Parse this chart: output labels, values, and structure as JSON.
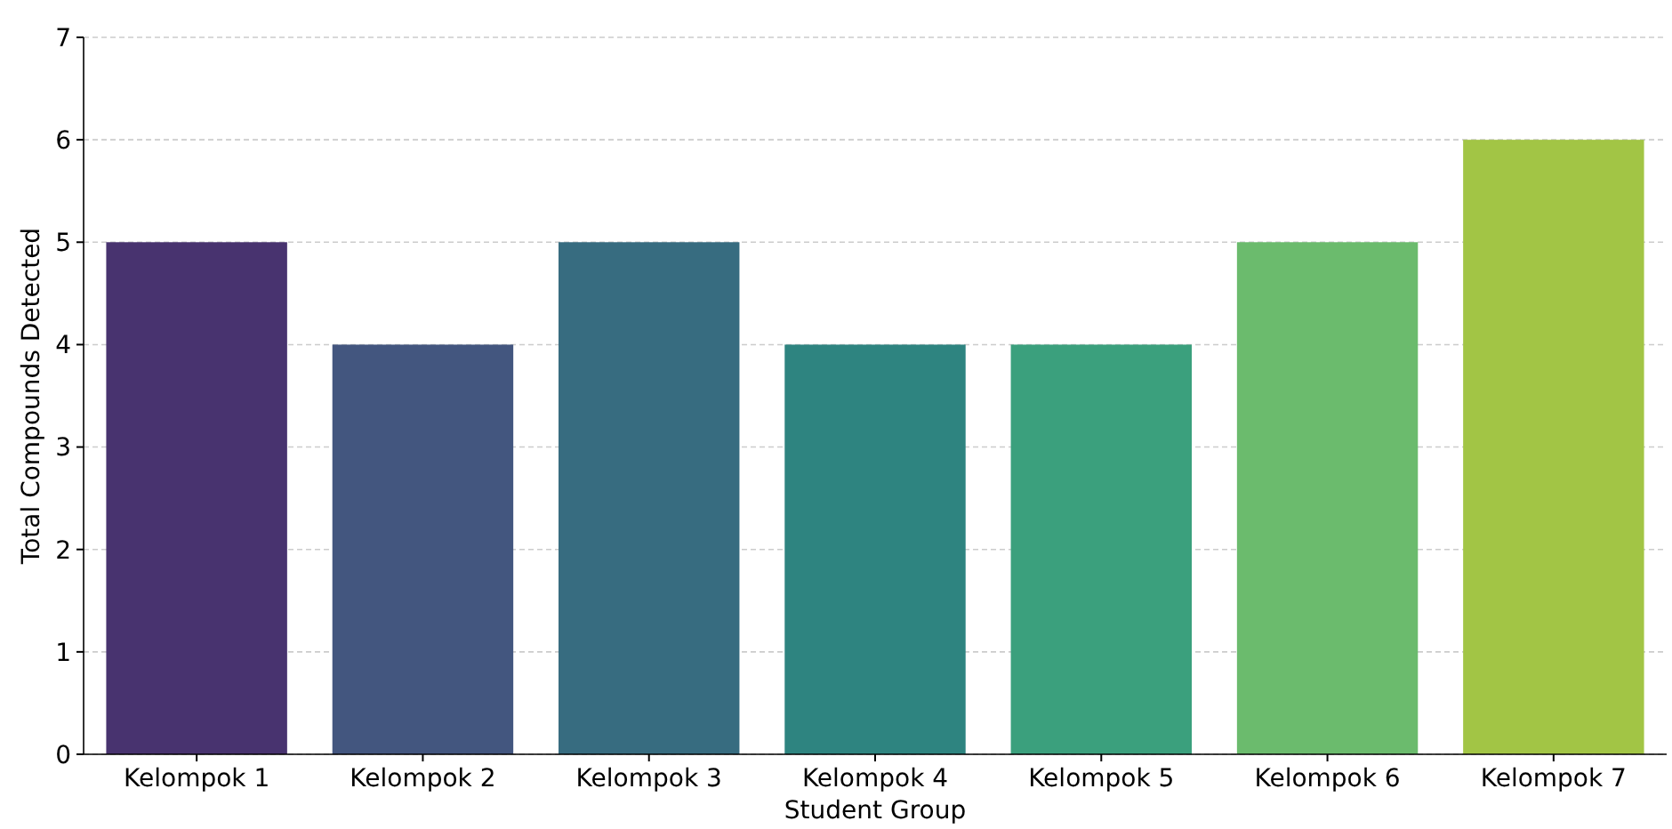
{
  "chart_data": {
    "type": "bar",
    "xlabel": "Student Group",
    "ylabel": "Total Compounds Detected",
    "categories": [
      "Kelompok 1",
      "Kelompok 2",
      "Kelompok 3",
      "Kelompok 4",
      "Kelompok 5",
      "Kelompok 6",
      "Kelompok 7"
    ],
    "values": [
      5,
      4,
      5,
      4,
      4,
      5,
      6
    ],
    "colors": [
      "#48336f",
      "#43567f",
      "#376c80",
      "#2e8480",
      "#3ba07d",
      "#6bbb6d",
      "#a2c545"
    ],
    "ylim": [
      0,
      7
    ],
    "yticks": [
      0,
      1,
      2,
      3,
      4,
      5,
      6,
      7
    ],
    "grid": "y"
  }
}
